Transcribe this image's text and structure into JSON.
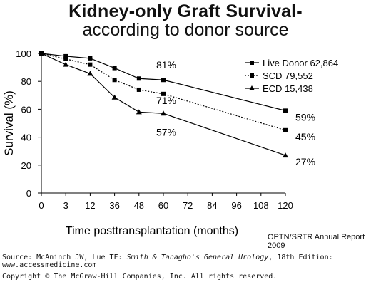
{
  "chart_data": {
    "type": "line",
    "title": "Kidney-only Graft Survival-",
    "subtitle": "according to donor source",
    "xlabel": "Time posttransplantation (months)",
    "ylabel": "Survival (%)",
    "x": [
      0,
      3,
      12,
      36,
      48,
      60,
      120
    ],
    "xticks": [
      "0",
      "3",
      "12",
      "36",
      "48",
      "60",
      "72",
      "84",
      "96",
      "108",
      "120"
    ],
    "yticks": [
      "0",
      "20",
      "40",
      "60",
      "80",
      "100"
    ],
    "ylim": [
      0,
      100
    ],
    "grid": false,
    "legend_position": "top-right",
    "series": [
      {
        "name": "Live Donor 62,864",
        "marker": "square",
        "line": "solid",
        "values": [
          100,
          98,
          96.5,
          89.5,
          82,
          81,
          59
        ]
      },
      {
        "name": "SCD 79,552",
        "marker": "square",
        "line": "dotted",
        "values": [
          100,
          96,
          92,
          81,
          74,
          71,
          45
        ]
      },
      {
        "name": "ECD 15,438",
        "marker": "triangle",
        "line": "solid",
        "values": [
          100,
          92,
          85.5,
          68.5,
          58,
          57,
          27
        ]
      }
    ],
    "annotations": [
      {
        "text": "81%",
        "x": 60,
        "y": 81
      },
      {
        "text": "71%",
        "x": 60,
        "y": 71
      },
      {
        "text": "57%",
        "x": 60,
        "y": 57
      },
      {
        "text": "59%",
        "x": 120,
        "y": 59
      },
      {
        "text": "45%",
        "x": 120,
        "y": 45
      },
      {
        "text": "27%",
        "x": 120,
        "y": 27
      }
    ]
  },
  "credit": "OPTN/SRTR  Annual Report 2009",
  "source": {
    "prefix": "Source: McAninch JW, Lue TF: ",
    "book": "Smith & Tanagho's General Urology",
    "suffix": ", 18th Edition:",
    "url": "www.accessmedicine.com"
  },
  "copyright": "Copyright © The McGraw-Hill Companies, Inc. All rights reserved."
}
